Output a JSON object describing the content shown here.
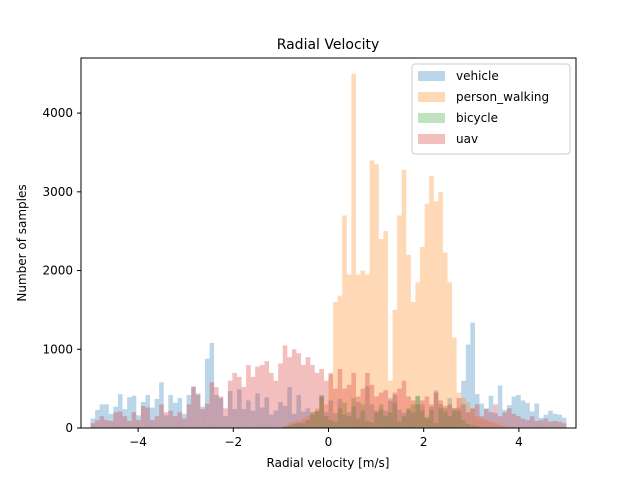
{
  "chart_data": {
    "type": "bar",
    "title": "Radial Velocity",
    "xlabel": "Radial velocity [m/s]",
    "ylabel": "Number of samples",
    "xlim": [
      -5.2,
      5.2
    ],
    "ylim": [
      0,
      4700
    ],
    "xticks": [
      -4,
      -2,
      0,
      2,
      4
    ],
    "yticks": [
      0,
      1000,
      2000,
      3000,
      4000
    ],
    "grid": false,
    "legend_position": "top-right",
    "bin_range": [
      -5,
      5
    ],
    "series": [
      {
        "name": "vehicle",
        "color": "#1f77b4",
        "values": [
          120,
          230,
          300,
          300,
          180,
          270,
          430,
          240,
          390,
          410,
          160,
          330,
          420,
          260,
          370,
          580,
          160,
          420,
          320,
          380,
          180,
          420,
          530,
          440,
          270,
          880,
          1080,
          420,
          380,
          150,
          470,
          240,
          490,
          240,
          350,
          220,
          440,
          260,
          390,
          170,
          220,
          330,
          280,
          520,
          180,
          420,
          210,
          250,
          170,
          210,
          420,
          200,
          350,
          190,
          370,
          170,
          200,
          270,
          330,
          220,
          530,
          300,
          220,
          240,
          220,
          380,
          420,
          230,
          190,
          230,
          200,
          410,
          300,
          140,
          270,
          480,
          250,
          210,
          380,
          250,
          260,
          600,
          1060,
          1340,
          430,
          310,
          240,
          410,
          190,
          540,
          230,
          290,
          400,
          420,
          350,
          320,
          210,
          310,
          130,
          170,
          220,
          180,
          170,
          130
        ]
      },
      {
        "name": "person_walking",
        "color": "#ff7f0e",
        "values": [
          0,
          0,
          0,
          0,
          0,
          0,
          0,
          0,
          0,
          0,
          0,
          0,
          0,
          0,
          0,
          0,
          0,
          0,
          0,
          0,
          0,
          0,
          0,
          0,
          0,
          0,
          0,
          0,
          0,
          0,
          0,
          0,
          0,
          0,
          0,
          0,
          0,
          0,
          0,
          0,
          0,
          0,
          20,
          60,
          80,
          90,
          120,
          150,
          200,
          250,
          400,
          300,
          680,
          1600,
          1680,
          2700,
          1950,
          4500,
          1950,
          2000,
          1950,
          3400,
          3350,
          2400,
          2500,
          600,
          1500,
          2700,
          3280,
          2200,
          1600,
          1850,
          2300,
          2850,
          3200,
          2880,
          3000,
          2230,
          1850,
          1150,
          450,
          380,
          330,
          240,
          150,
          120,
          100,
          80,
          60,
          40,
          20,
          0,
          0,
          0,
          0,
          0,
          0,
          0,
          0,
          0,
          0,
          0,
          0,
          0
        ]
      },
      {
        "name": "bicycle",
        "color": "#2ca02c",
        "values": [
          0,
          0,
          0,
          0,
          0,
          0,
          0,
          0,
          0,
          0,
          0,
          0,
          0,
          0,
          0,
          0,
          0,
          0,
          0,
          0,
          0,
          0,
          0,
          0,
          0,
          0,
          0,
          0,
          0,
          0,
          0,
          0,
          0,
          0,
          0,
          0,
          0,
          0,
          0,
          0,
          0,
          0,
          20,
          30,
          50,
          60,
          60,
          100,
          200,
          220,
          400,
          150,
          100,
          80,
          250,
          320,
          150,
          380,
          120,
          300,
          90,
          70,
          200,
          300,
          150,
          200,
          320,
          80,
          150,
          250,
          300,
          400,
          220,
          120,
          230,
          60,
          300,
          250,
          150,
          220,
          220,
          100,
          50,
          30,
          20,
          0,
          0,
          0,
          0,
          0,
          0,
          0,
          0,
          0,
          0,
          0,
          0,
          0,
          0,
          0,
          0,
          0,
          0,
          0
        ]
      },
      {
        "name": "uav",
        "color": "#d62728",
        "values": [
          60,
          100,
          150,
          100,
          90,
          200,
          210,
          150,
          90,
          200,
          100,
          280,
          260,
          100,
          150,
          300,
          200,
          220,
          150,
          200,
          120,
          300,
          520,
          420,
          240,
          310,
          580,
          520,
          400,
          250,
          600,
          700,
          650,
          520,
          800,
          650,
          780,
          800,
          850,
          700,
          600,
          820,
          1050,
          900,
          1000,
          950,
          800,
          900,
          800,
          700,
          750,
          600,
          700,
          500,
          750,
          500,
          550,
          700,
          400,
          500,
          700,
          550,
          400,
          450,
          480,
          350,
          450,
          500,
          600,
          400,
          350,
          300,
          350,
          400,
          300,
          450,
          350,
          280,
          300,
          250,
          380,
          300,
          200,
          250,
          300,
          150,
          250,
          200,
          300,
          150,
          200,
          250,
          180,
          150,
          120,
          100,
          150,
          90,
          100,
          120,
          80,
          90,
          80,
          60
        ]
      }
    ]
  }
}
